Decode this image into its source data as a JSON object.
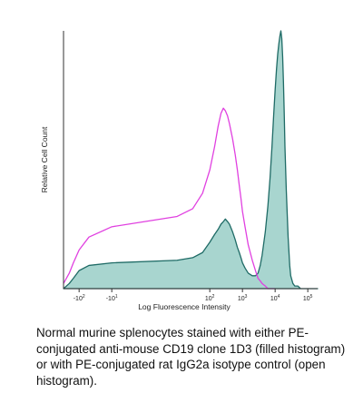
{
  "chart_data": {
    "type": "area",
    "title": "",
    "xlabel": "Log Fluorescence Intensity",
    "ylabel": "Relative Cell Count",
    "x_scale": "log (biexponential)",
    "xlim": [
      -300,
      200000
    ],
    "ylim": [
      0,
      100
    ],
    "grid": false,
    "x_ticks": [
      {
        "label": "-10",
        "sup": "2",
        "value": -100
      },
      {
        "label": "-10",
        "sup": "1",
        "value": -10
      },
      {
        "label": "10",
        "sup": "2",
        "value": 100
      },
      {
        "label": "10",
        "sup": "3",
        "value": 1000
      },
      {
        "label": "10",
        "sup": "4",
        "value": 10000
      },
      {
        "label": "10",
        "sup": "5",
        "value": 100000
      }
    ],
    "series": [
      {
        "style": "filled",
        "fill": "#9fd0ca",
        "stroke": "#1f6b66",
        "x": [
          -300,
          -200,
          -150,
          -100,
          -50,
          -10,
          10,
          30,
          60,
          100,
          140,
          180,
          220,
          260,
          300,
          350,
          400,
          500,
          600,
          700,
          800,
          900,
          1000,
          1200,
          1500,
          2000,
          2500,
          3000,
          3500,
          4000,
          5000,
          6000,
          7000,
          8000,
          9000,
          10000,
          11000,
          12000,
          13000,
          14000,
          15000,
          16000,
          17000,
          18000,
          19000,
          20000,
          22000,
          25000,
          28000,
          30000,
          35000,
          40000,
          50000,
          60000,
          80000,
          100000,
          150000,
          200000
        ],
        "y": [
          0,
          2,
          4,
          7,
          9,
          10,
          11,
          12,
          14,
          18,
          21,
          23,
          25,
          26,
          27,
          26,
          25,
          22,
          19,
          16,
          14,
          12,
          10,
          8,
          6,
          5,
          5,
          6,
          9,
          13,
          22,
          32,
          43,
          55,
          67,
          77,
          85,
          91,
          95,
          98,
          100,
          97,
          90,
          80,
          68,
          55,
          38,
          20,
          9,
          5,
          2,
          1,
          1,
          0,
          0,
          0,
          0,
          0
        ]
      },
      {
        "style": "open",
        "stroke": "#e040e0",
        "x": [
          -300,
          -200,
          -150,
          -100,
          -50,
          -10,
          10,
          30,
          60,
          100,
          140,
          180,
          220,
          260,
          300,
          350,
          400,
          500,
          600,
          700,
          800,
          900,
          1000,
          1200,
          1500,
          2000,
          2500,
          3000,
          3500,
          4000,
          5000,
          6000,
          8000,
          10000
        ],
        "y": [
          2,
          6,
          10,
          15,
          20,
          24,
          28,
          31,
          37,
          46,
          55,
          63,
          68,
          70,
          69,
          67,
          64,
          58,
          52,
          46,
          40,
          35,
          30,
          24,
          17,
          11,
          7,
          4,
          3,
          2,
          1,
          0,
          0,
          0
        ]
      }
    ]
  },
  "caption": "Normal murine splenocytes stained with either PE-conjugated anti-mouse CD19 clone 1D3 (filled histogram) or with PE-conjugated rat IgG2a isotype control (open histogram)."
}
